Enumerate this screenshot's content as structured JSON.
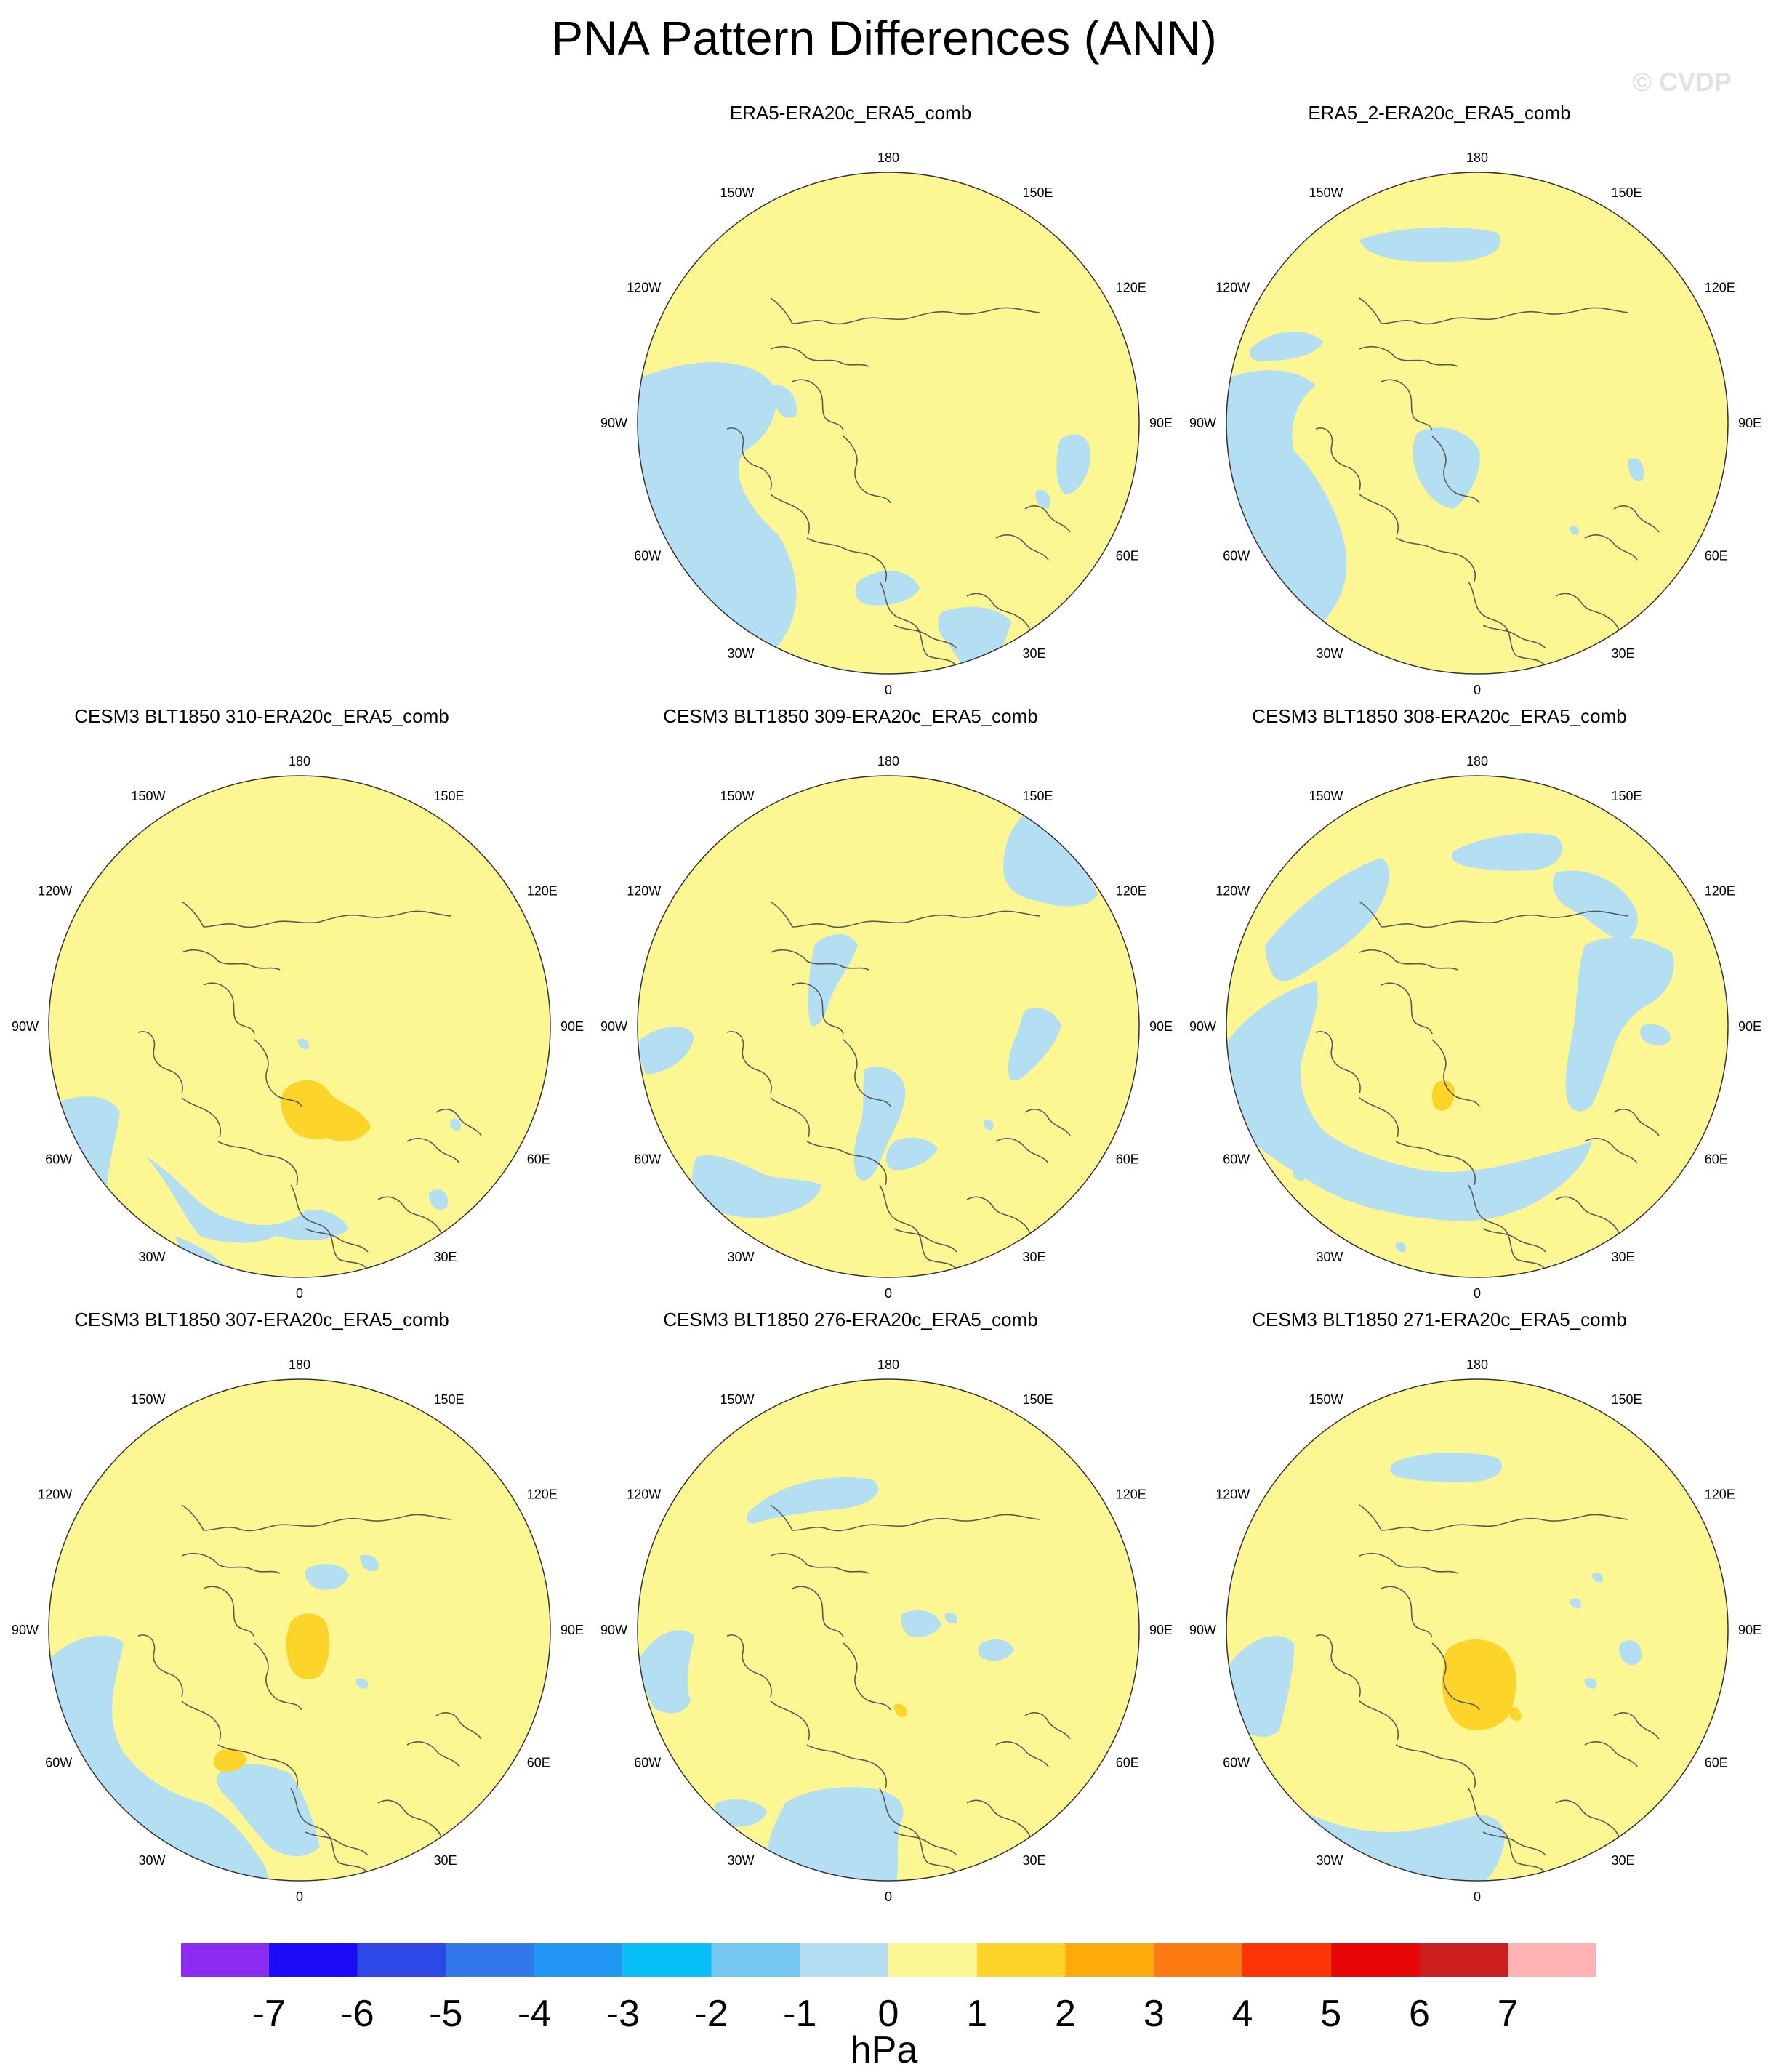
{
  "title": "PNA Pattern Differences (ANN)",
  "watermark": "© CVDP",
  "lon_labels": {
    "top": "180",
    "bottom": "0",
    "left": "90W",
    "right": "90E",
    "upper_left_outer": "120W",
    "upper_left_inner": "150W",
    "upper_right_outer": "120E",
    "upper_right_inner": "150E",
    "lower_left_outer": "60W",
    "lower_left_inner": "30W",
    "lower_right_outer": "60E",
    "lower_right_inner": "30E"
  },
  "panels": [
    {
      "title": "ERA5-ERA20c_ERA5_comb",
      "pattern": "era5"
    },
    {
      "title": "ERA5_2-ERA20c_ERA5_comb",
      "pattern": "era5_2"
    },
    {
      "title": "CESM3 BLT1850 310-ERA20c_ERA5_comb",
      "pattern": "m310"
    },
    {
      "title": "CESM3 BLT1850 309-ERA20c_ERA5_comb",
      "pattern": "m309"
    },
    {
      "title": "CESM3 BLT1850 308-ERA20c_ERA5_comb",
      "pattern": "m308"
    },
    {
      "title": "CESM3 BLT1850 307-ERA20c_ERA5_comb",
      "pattern": "m307"
    },
    {
      "title": "CESM3 BLT1850 276-ERA20c_ERA5_comb",
      "pattern": "m276"
    },
    {
      "title": "CESM3 BLT1850 271-ERA20c_ERA5_comb",
      "pattern": "m271"
    }
  ],
  "colorbar": {
    "units": "hPa",
    "tick_labels": [
      "-7",
      "-6",
      "-5",
      "-4",
      "-3",
      "-2",
      "-1",
      "0",
      "1",
      "2",
      "3",
      "4",
      "5",
      "6",
      "7"
    ],
    "colors": [
      "#8d2af0",
      "#1a0af5",
      "#2c48e8",
      "#3378ea",
      "#2196f3",
      "#06c0f7",
      "#73c7f1",
      "#b4dff2",
      "#fdf793",
      "#fdd429",
      "#fdaa0a",
      "#fd7b13",
      "#fd3506",
      "#e80706",
      "#cc1f1f",
      "#ffb2b2"
    ]
  },
  "colors": {
    "field_zero": "#fdf793",
    "field_neg": "#b4dff2",
    "field_pos": "#fdd429",
    "coastline": "#5a5a5a"
  }
}
